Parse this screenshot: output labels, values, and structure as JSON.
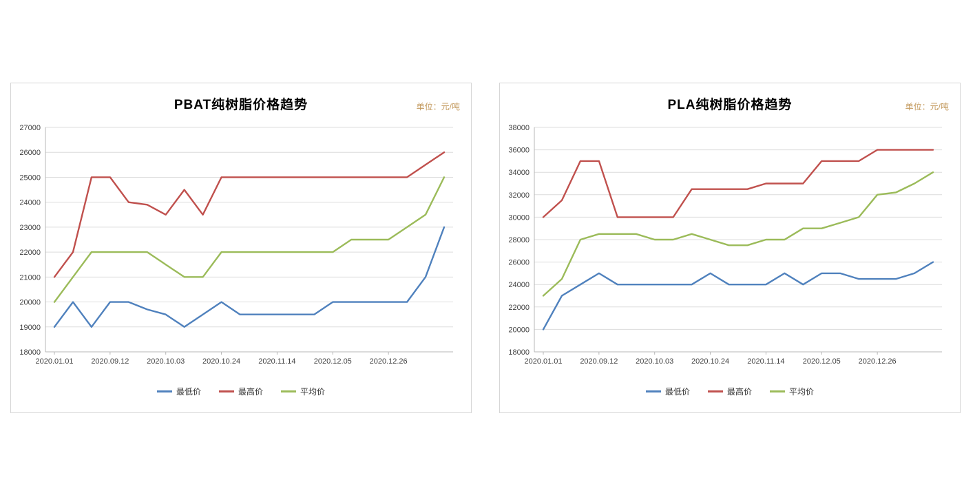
{
  "page": {
    "background": "#ffffff"
  },
  "chart_data": [
    {
      "type": "line",
      "title": "PBAT纯树脂价格趋势",
      "unit_label": "单位：元/吨",
      "ylim": [
        18000,
        27000
      ],
      "ystep": 1000,
      "grid": true,
      "legend_position": "bottom",
      "x_tick_indices": [
        0,
        3,
        6,
        9,
        12,
        15,
        18
      ],
      "x_tick_labels": [
        "2020.01.01",
        "2020.09.12",
        "2020.10.03",
        "2020.10.24",
        "2020.11.14",
        "2020.12.05",
        "2020.12.26"
      ],
      "grid_color": "#dcdcdc",
      "axis_color": "#b7b7b7",
      "series": [
        {
          "name": "最低价",
          "color": "#4F81BD",
          "values": [
            19000,
            20000,
            19000,
            20000,
            20000,
            19700,
            19500,
            19000,
            19500,
            20000,
            19500,
            19500,
            19500,
            19500,
            19500,
            20000,
            20000,
            20000,
            20000,
            20000,
            21000,
            23000
          ]
        },
        {
          "name": "最高价",
          "color": "#C0504D",
          "values": [
            21000,
            22000,
            25000,
            25000,
            24000,
            23900,
            23500,
            24500,
            23500,
            25000,
            25000,
            25000,
            25000,
            25000,
            25000,
            25000,
            25000,
            25000,
            25000,
            25000,
            25500,
            26000
          ]
        },
        {
          "name": "平均价",
          "color": "#9BBB59",
          "values": [
            20000,
            21000,
            22000,
            22000,
            22000,
            22000,
            21500,
            21000,
            21000,
            22000,
            22000,
            22000,
            22000,
            22000,
            22000,
            22000,
            22500,
            22500,
            22500,
            23000,
            23500,
            25000
          ]
        }
      ]
    },
    {
      "type": "line",
      "title": "PLA纯树脂价格趋势",
      "unit_label": "单位：元/吨",
      "ylim": [
        18000,
        38000
      ],
      "ystep": 2000,
      "grid": true,
      "legend_position": "bottom",
      "x_tick_indices": [
        0,
        3,
        6,
        9,
        12,
        15,
        18
      ],
      "x_tick_labels": [
        "2020.01.01",
        "2020.09.12",
        "2020.10.03",
        "2020.10.24",
        "2020.11.14",
        "2020.12.05",
        "2020.12.26"
      ],
      "grid_color": "#dcdcdc",
      "axis_color": "#b7b7b7",
      "series": [
        {
          "name": "最低价",
          "color": "#4F81BD",
          "values": [
            20000,
            23000,
            24000,
            25000,
            24000,
            24000,
            24000,
            24000,
            24000,
            25000,
            24000,
            24000,
            24000,
            25000,
            24000,
            25000,
            25000,
            24500,
            24500,
            24500,
            25000,
            26000
          ]
        },
        {
          "name": "最高价",
          "color": "#C0504D",
          "values": [
            30000,
            31500,
            35000,
            35000,
            30000,
            30000,
            30000,
            30000,
            32500,
            32500,
            32500,
            32500,
            33000,
            33000,
            33000,
            35000,
            35000,
            35000,
            36000,
            36000,
            36000,
            36000
          ]
        },
        {
          "name": "平均价",
          "color": "#9BBB59",
          "values": [
            23000,
            24500,
            28000,
            28500,
            28500,
            28500,
            28000,
            28000,
            28500,
            28000,
            27500,
            27500,
            28000,
            28000,
            29000,
            29000,
            29500,
            30000,
            32000,
            32200,
            33000,
            34000
          ]
        }
      ]
    }
  ]
}
